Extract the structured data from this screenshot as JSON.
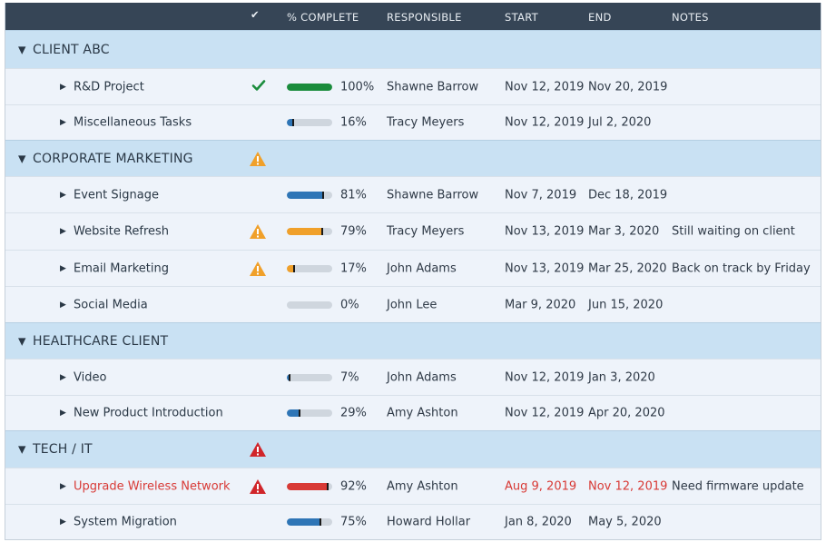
{
  "header": {
    "check_glyph": "✔",
    "pct_complete": "% COMPLETE",
    "responsible": "RESPONSIBLE",
    "start": "START",
    "end": "END",
    "notes": "NOTES"
  },
  "colors": {
    "header_bg": "#364556",
    "group_bg": "#c9e1f3",
    "row_bg": "#eef3fa",
    "bar_blue": "#2e75b6",
    "bar_green": "#1a8c3c",
    "bar_orange": "#f0a02a",
    "bar_red": "#d83a36",
    "warning_orange": "#f0a02a",
    "alert_red": "#d0252a"
  },
  "groups": [
    {
      "name": "CLIENT ABC",
      "flag": ""
    },
    {
      "name": "CORPORATE MARKETING",
      "flag": "warning-icon"
    },
    {
      "name": "HEALTHCARE CLIENT",
      "flag": ""
    },
    {
      "name": "TECH / IT",
      "flag": "alert-icon"
    }
  ],
  "tasks": [
    {
      "name": "R&D Project",
      "pct": "100%",
      "progress": 1.0,
      "bar": "green",
      "flag": "check-icon",
      "responsible": "Shawne Barrow",
      "start": "Nov 12, 2019",
      "end": "Nov 20, 2019",
      "notes": ""
    },
    {
      "name": "Miscellaneous Tasks",
      "pct": "16%",
      "progress": 0.16,
      "bar": "blue",
      "flag": "",
      "responsible": "Tracy Meyers",
      "start": "Nov 12, 2019",
      "end": "Jul 2, 2020",
      "notes": ""
    },
    {
      "name": "Event Signage",
      "pct": "81%",
      "progress": 0.81,
      "bar": "blue",
      "flag": "",
      "responsible": "Shawne Barrow",
      "start": "Nov 7, 2019",
      "end": "Dec 18, 2019",
      "notes": ""
    },
    {
      "name": "Website Refresh",
      "pct": "79%",
      "progress": 0.79,
      "bar": "orange",
      "flag": "warning-icon",
      "responsible": "Tracy Meyers",
      "start": "Nov 13, 2019",
      "end": "Mar 3, 2020",
      "notes": "Still waiting on client"
    },
    {
      "name": "Email Marketing",
      "pct": "17%",
      "progress": 0.17,
      "bar": "orange",
      "flag": "warning-icon",
      "responsible": "John Adams",
      "start": "Nov 13, 2019",
      "end": "Mar 25, 2020",
      "notes": "Back on track by Friday"
    },
    {
      "name": "Social Media",
      "pct": "0%",
      "progress": 0.0,
      "bar": "blue",
      "flag": "",
      "responsible": "John Lee",
      "start": "Mar 9, 2020",
      "end": "Jun 15, 2020",
      "notes": ""
    },
    {
      "name": "Video",
      "pct": "7%",
      "progress": 0.07,
      "bar": "blue",
      "flag": "",
      "responsible": "John Adams",
      "start": "Nov 12, 2019",
      "end": "Jan 3, 2020",
      "notes": ""
    },
    {
      "name": "New Product Introduction",
      "pct": "29%",
      "progress": 0.29,
      "bar": "blue",
      "flag": "",
      "responsible": "Amy Ashton",
      "start": "Nov 12, 2019",
      "end": "Apr 20, 2020",
      "notes": ""
    },
    {
      "name": "Upgrade Wireless Network",
      "pct": "92%",
      "progress": 0.92,
      "bar": "red",
      "flag": "alert-icon",
      "late": true,
      "responsible": "Amy Ashton",
      "start": "Aug 9, 2019",
      "end": "Nov 12, 2019",
      "notes": "Need firmware update"
    },
    {
      "name": "System Migration",
      "pct": "75%",
      "progress": 0.75,
      "bar": "blue",
      "flag": "",
      "responsible": "Howard Hollar",
      "start": "Jan 8, 2020",
      "end": "May 5, 2020",
      "notes": ""
    }
  ]
}
